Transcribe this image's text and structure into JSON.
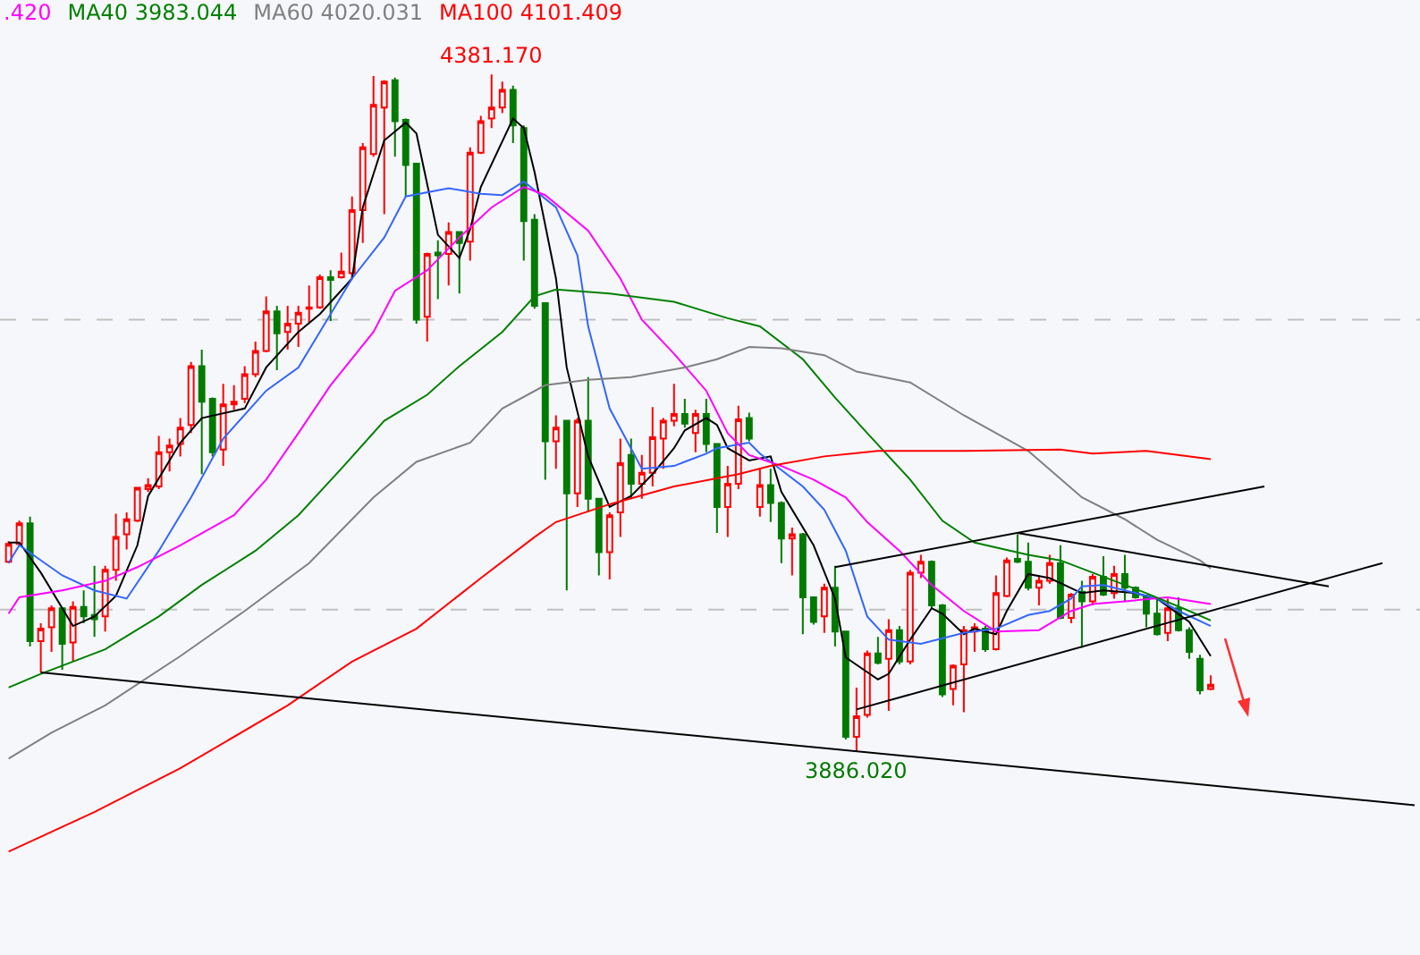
{
  "chart_data": {
    "type": "candlestick",
    "legend": "top left",
    "categories": [
      null,
      null,
      null,
      null,
      null,
      null,
      null,
      null,
      null,
      null,
      null,
      null,
      null,
      null,
      null,
      null,
      null,
      null,
      null,
      null,
      null,
      null,
      null,
      null,
      null,
      null,
      null,
      null,
      null,
      null,
      null,
      null,
      null,
      null,
      null,
      null,
      null,
      null,
      null,
      null,
      null,
      null,
      null,
      null,
      null,
      null,
      null,
      null,
      null,
      null,
      null,
      null,
      null,
      null,
      null,
      null,
      null,
      null,
      null,
      null,
      null,
      null,
      null,
      null,
      null,
      null,
      null,
      null,
      null,
      null,
      null,
      null,
      null,
      null,
      null,
      null,
      null,
      null,
      null,
      null,
      null,
      null,
      null,
      null,
      null,
      null,
      null,
      null,
      null,
      null,
      null,
      null,
      null,
      null,
      null,
      null,
      null,
      null,
      null,
      null,
      null,
      null,
      null,
      null,
      null,
      null,
      null,
      null,
      null,
      null,
      null,
      null,
      null,
      null,
      null,
      null,
      null,
      null,
      null,
      null,
      null,
      null,
      null,
      null,
      null,
      null,
      null,
      null,
      null,
      null,
      null,
      null
    ],
    "ohlc": [
      [
        4025,
        4040,
        4024,
        4038
      ],
      [
        4038,
        4055,
        4037,
        4053
      ],
      [
        4053,
        4058,
        3963,
        3967
      ],
      [
        3967,
        3980,
        3944,
        3976
      ],
      [
        3977,
        3993,
        3959,
        3991
      ],
      [
        3991,
        3991,
        3946,
        3965
      ],
      [
        3966,
        3996,
        3952,
        3992
      ],
      [
        3992,
        4004,
        3980,
        3985
      ],
      [
        3986,
        4022,
        3970,
        3983
      ],
      [
        3985,
        4022,
        3974,
        4019
      ],
      [
        4019,
        4060,
        4011,
        4043
      ],
      [
        4045,
        4061,
        4034,
        4056
      ],
      [
        4055,
        4079,
        4054,
        4079
      ],
      [
        4078,
        4086,
        4076,
        4081
      ],
      [
        4080,
        4117,
        4078,
        4105
      ],
      [
        4105,
        4115,
        4091,
        4110
      ],
      [
        4111,
        4130,
        4102,
        4123
      ],
      [
        4125,
        4171,
        4119,
        4168
      ],
      [
        4168,
        4180,
        4089,
        4142
      ],
      [
        4144,
        4145,
        4102,
        4105
      ],
      [
        4107,
        4155,
        4095,
        4140
      ],
      [
        4140,
        4154,
        4136,
        4142
      ],
      [
        4144,
        4168,
        4141,
        4162
      ],
      [
        4162,
        4186,
        4160,
        4179
      ],
      [
        4179,
        4219,
        4178,
        4208
      ],
      [
        4208,
        4212,
        4165,
        4192
      ],
      [
        4193,
        4212,
        4180,
        4199
      ],
      [
        4199,
        4212,
        4182,
        4207
      ],
      [
        4210,
        4227,
        4199,
        4211
      ],
      [
        4211,
        4235,
        4210,
        4233
      ],
      [
        4233,
        4238,
        4201,
        4231
      ],
      [
        4233,
        4251,
        4232,
        4237
      ],
      [
        4236,
        4292,
        4232,
        4282
      ],
      [
        4282,
        4331,
        4258,
        4328
      ],
      [
        4323,
        4380,
        4321,
        4359
      ],
      [
        4357,
        4377,
        4279,
        4376
      ],
      [
        4377,
        4379,
        4321,
        4347
      ],
      [
        4348,
        4349,
        4292,
        4315
      ],
      [
        4316,
        4316,
        4199,
        4202
      ],
      [
        4204,
        4251,
        4186,
        4250
      ],
      [
        4251,
        4260,
        4217,
        4249
      ],
      [
        4250,
        4273,
        4227,
        4266
      ],
      [
        4266,
        4266,
        4221,
        4258
      ],
      [
        4259,
        4328,
        4245,
        4324
      ],
      [
        4324,
        4351,
        4323,
        4347
      ],
      [
        4349,
        4381.17,
        4342,
        4357
      ],
      [
        4357,
        4376,
        4353,
        4370
      ],
      [
        4370,
        4373,
        4331,
        4344
      ],
      [
        4342,
        4344,
        4245,
        4274
      ],
      [
        4275,
        4279,
        4210,
        4212
      ],
      [
        4214,
        4214,
        4085,
        4113
      ],
      [
        4113,
        4132,
        4093,
        4123
      ],
      [
        4128,
        4128,
        4004,
        4075
      ],
      [
        4075,
        4130,
        4065,
        4128
      ],
      [
        4128,
        4160,
        4061,
        4071
      ],
      [
        4071,
        4071,
        4015,
        4032
      ],
      [
        4032,
        4061,
        4012,
        4059
      ],
      [
        4061,
        4115,
        4043,
        4097
      ],
      [
        4103,
        4115,
        4071,
        4082
      ],
      [
        4082,
        4103,
        4071,
        4090
      ],
      [
        4090,
        4138,
        4080,
        4116
      ],
      [
        4115,
        4130,
        4093,
        4128
      ],
      [
        4128,
        4155,
        4124,
        4133
      ],
      [
        4133,
        4144,
        4123,
        4126
      ],
      [
        4119,
        4136,
        4105,
        4133
      ],
      [
        4133,
        4144,
        4105,
        4111
      ],
      [
        4111,
        4111,
        4046,
        4065
      ],
      [
        4065,
        4095,
        4043,
        4082
      ],
      [
        4082,
        4139,
        4078,
        4129
      ],
      [
        4130,
        4134,
        4113,
        4115
      ],
      [
        4065,
        4093,
        4058,
        4081
      ],
      [
        4081,
        4093,
        4054,
        4068
      ],
      [
        4068,
        4069,
        4024,
        4042
      ],
      [
        4042,
        4050,
        4015,
        4045
      ],
      [
        4045,
        4046,
        3972,
        3999
      ],
      [
        3999,
        3999,
        3979,
        3981
      ],
      [
        3985,
        4009,
        3973,
        4006
      ],
      [
        4006,
        4022,
        3963,
        3974
      ],
      [
        3974,
        3974,
        3895,
        3897
      ],
      [
        3897,
        3933,
        3886.02,
        3912
      ],
      [
        3913,
        3960,
        3911,
        3958
      ],
      [
        3958,
        3970,
        3950,
        3951
      ],
      [
        3954,
        3983,
        3916,
        3975
      ],
      [
        3975,
        3978,
        3950,
        3952
      ],
      [
        3952,
        4019,
        3950,
        4017
      ],
      [
        4017,
        4030,
        4013,
        4025
      ],
      [
        4025,
        4026,
        3991,
        3993
      ],
      [
        3993,
        3994,
        3926,
        3928
      ],
      [
        3932,
        3950,
        3920,
        3949
      ],
      [
        3950,
        3978,
        3915,
        3975
      ],
      [
        3974,
        3980,
        3959,
        3977
      ],
      [
        3976,
        3978,
        3959,
        3961
      ],
      [
        3961,
        4015,
        3960,
        4002
      ],
      [
        4000,
        4028,
        3999,
        4026
      ],
      [
        4027,
        4045,
        4024,
        4025
      ],
      [
        4025,
        4039,
        4004,
        4006
      ],
      [
        4006,
        4015,
        3993,
        4011
      ],
      [
        4011,
        4030,
        4009,
        4024
      ],
      [
        4024,
        4037,
        3983,
        3984
      ],
      [
        3984,
        4002,
        3980,
        4001
      ],
      [
        4003,
        4011,
        3962,
        3996
      ],
      [
        3996,
        4016,
        3993,
        4014
      ],
      [
        4014,
        4029,
        4000,
        4001
      ],
      [
        4002,
        4022,
        3998,
        4016
      ],
      [
        4016,
        4030,
        3996,
        4006
      ],
      [
        4006,
        4007,
        3998,
        3999
      ],
      [
        4000,
        4001,
        3977,
        3987
      ],
      [
        3987,
        3998,
        3971,
        3972
      ],
      [
        3973,
        3998,
        3967,
        3991
      ],
      [
        3991,
        3999,
        3974,
        3975
      ],
      [
        3975,
        3977,
        3954,
        3959
      ],
      [
        3954,
        3957,
        3928,
        3931
      ],
      [
        3932,
        3942,
        3931,
        3935
      ],
      null,
      null,
      null,
      null,
      null,
      null,
      null,
      null,
      null,
      null,
      null,
      null,
      null,
      null,
      null,
      null,
      null,
      null,
      null
    ],
    "series": [
      {
        "type": "line",
        "color": "#000000",
        "values": [
          4039,
          4039,
          null,
          4017,
          null,
          null,
          3978,
          null,
          3985,
          null,
          4000,
          null,
          4037,
          4073,
          null,
          null,
          4112,
          null,
          4130,
          null,
          null,
          null,
          4137,
          null,
          4167,
          null,
          null,
          4193,
          null,
          4206,
          null,
          null,
          4232,
          4284,
          null,
          4333,
          null,
          4346,
          4338,
          null,
          4264,
          null,
          4247,
          4268,
          4299,
          null,
          null,
          4349,
          4342,
          4310,
          null,
          4232,
          4167,
          null,
          4102,
          null,
          4065,
          null,
          4073,
          null,
          4089,
          null,
          4108,
          4121,
          null,
          4130,
          4125,
          4108,
          null,
          4099,
          null,
          4102,
          4076,
          null,
          null,
          4037,
          null,
          3998,
          3955,
          null,
          null,
          3939,
          3943,
          null,
          3968,
          null,
          3991,
          3987,
          null,
          3972,
          3976,
          null,
          3972,
          3989,
          null,
          4016,
          null,
          4013,
          null,
          null,
          4002,
          null,
          4004,
          null,
          null,
          4002,
          null,
          3998,
          null,
          null,
          3981,
          null,
          3956,
          null,
          null,
          null,
          null,
          null,
          null,
          null,
          null,
          null,
          null,
          null,
          null,
          null,
          null,
          null,
          null,
          null,
          null,
          null
        ]
      },
      {
        "type": "line",
        "color": "#3366ff",
        "values": [
          4024,
          4037,
          null,
          null,
          null,
          4015,
          null,
          null,
          4004,
          null,
          null,
          3998,
          null,
          null,
          4033,
          null,
          null,
          4072,
          null,
          null,
          4115,
          null,
          null,
          null,
          4150,
          null,
          null,
          4167,
          null,
          null,
          4206,
          null,
          4232,
          null,
          null,
          4262,
          null,
          4292,
          null,
          null,
          null,
          4298,
          null,
          null,
          4294,
          null,
          4293,
          null,
          4303,
          null,
          null,
          4284,
          null,
          4249,
          4197,
          null,
          4137,
          null,
          null,
          4093,
          null,
          null,
          4095,
          null,
          null,
          4104,
          4108,
          null,
          null,
          4112,
          4104,
          null,
          null,
          null,
          4080,
          null,
          4063,
          null,
          4033,
          null,
          3985,
          null,
          3968,
          null,
          null,
          3965,
          null,
          null,
          null,
          3973,
          null,
          null,
          3976,
          null,
          null,
          3986,
          null,
          3989,
          null,
          3998,
          4007,
          null,
          4008,
          null,
          null,
          4002,
          null,
          3998,
          null,
          3989,
          null,
          null,
          3978,
          null,
          null,
          null,
          null,
          null,
          null,
          null,
          null,
          null,
          null,
          null,
          null,
          null,
          null,
          null,
          null,
          null,
          null,
          null
        ]
      },
      {
        "type": "line",
        "name": ".420",
        "color": "#ff00ff",
        "values": [
          3987,
          3999,
          null,
          null,
          null,
          4004,
          null,
          null,
          null,
          4011,
          null,
          null,
          4021,
          null,
          null,
          null,
          4037,
          null,
          null,
          null,
          null,
          4059,
          null,
          null,
          4085,
          null,
          null,
          4119,
          null,
          null,
          4154,
          null,
          null,
          null,
          4193,
          null,
          4223,
          null,
          null,
          4238,
          null,
          null,
          4262,
          null,
          null,
          4284,
          null,
          null,
          4299,
          null,
          4293,
          null,
          null,
          null,
          4267,
          null,
          null,
          4232,
          null,
          4202,
          null,
          null,
          4177,
          null,
          null,
          4150,
          null,
          4119,
          null,
          4103,
          null,
          null,
          4095,
          null,
          null,
          4085,
          null,
          null,
          4072,
          null,
          4054,
          null,
          null,
          4033,
          null,
          null,
          4008,
          null,
          null,
          3989,
          null,
          null,
          3974,
          null,
          null,
          null,
          3975,
          null,
          null,
          3989,
          null,
          3994,
          null,
          null,
          3996,
          null,
          null,
          null,
          3999,
          null,
          null,
          null,
          3994,
          null,
          null,
          null,
          null,
          null,
          null,
          null,
          null,
          null,
          null,
          null,
          null,
          null,
          null,
          null,
          null,
          null,
          null,
          null
        ]
      },
      {
        "type": "line",
        "name": "MA40 3983.044",
        "color": "#008000",
        "values": [
          3933,
          null,
          null,
          3943,
          null,
          null,
          null,
          null,
          null,
          3961,
          null,
          null,
          null,
          null,
          3985,
          null,
          null,
          null,
          4008,
          null,
          null,
          null,
          null,
          4033,
          null,
          null,
          null,
          4059,
          null,
          null,
          null,
          4093,
          null,
          null,
          null,
          4128,
          null,
          null,
          null,
          4147,
          null,
          null,
          4168,
          null,
          null,
          null,
          4193,
          null,
          null,
          4219,
          null,
          4224,
          null,
          null,
          null,
          null,
          4221,
          null,
          null,
          null,
          null,
          null,
          4215,
          null,
          null,
          null,
          null,
          4203,
          null,
          null,
          4197,
          null,
          null,
          null,
          4173,
          null,
          null,
          4145,
          null,
          null,
          4119,
          null,
          null,
          null,
          4085,
          null,
          null,
          4055,
          null,
          null,
          4039,
          null,
          null,
          null,
          null,
          4030,
          null,
          null,
          4026,
          null,
          null,
          4017,
          null,
          null,
          null,
          null,
          4002,
          null,
          null,
          null,
          3989,
          null,
          3982,
          null,
          null,
          null,
          null,
          null,
          null,
          null,
          null,
          null,
          null,
          null,
          null,
          null,
          null,
          null,
          null,
          null,
          null,
          null
        ]
      },
      {
        "type": "line",
        "name": "MA60 4020.031",
        "color": "#808080",
        "values": [
          3881,
          null,
          null,
          null,
          3900,
          null,
          null,
          null,
          null,
          3920,
          null,
          null,
          null,
          null,
          null,
          null,
          3956,
          null,
          null,
          null,
          null,
          null,
          3989,
          null,
          null,
          null,
          null,
          null,
          4024,
          null,
          null,
          null,
          null,
          null,
          4072,
          null,
          null,
          null,
          4098,
          null,
          null,
          null,
          null,
          4112,
          null,
          null,
          4137,
          null,
          null,
          null,
          4154,
          null,
          null,
          null,
          4158,
          null,
          null,
          null,
          4160,
          null,
          null,
          null,
          null,
          4167,
          null,
          null,
          4173,
          null,
          null,
          4182,
          null,
          null,
          4181,
          null,
          null,
          null,
          4176,
          null,
          null,
          4164,
          null,
          null,
          null,
          null,
          4156,
          null,
          null,
          null,
          null,
          4132,
          null,
          null,
          null,
          null,
          null,
          4106,
          null,
          null,
          null,
          null,
          4072,
          null,
          null,
          null,
          4056,
          null,
          null,
          4041,
          null,
          null,
          null,
          4026,
          4020,
          null,
          null,
          null,
          null,
          null,
          null,
          null,
          null,
          null,
          null,
          null,
          null,
          null,
          null,
          null,
          null,
          null,
          null,
          null
        ]
      },
      {
        "type": "line",
        "name": "MA100 4101.409",
        "color": "#ff0000",
        "values": [
          3813,
          null,
          null,
          null,
          null,
          null,
          null,
          null,
          3842,
          null,
          null,
          null,
          null,
          null,
          null,
          null,
          3874,
          null,
          null,
          null,
          null,
          null,
          null,
          null,
          null,
          null,
          3920,
          null,
          null,
          null,
          null,
          null,
          3952,
          null,
          null,
          null,
          null,
          null,
          3976,
          null,
          null,
          null,
          null,
          null,
          4013,
          null,
          null,
          null,
          null,
          4043,
          null,
          4054,
          null,
          null,
          null,
          null,
          4067,
          null,
          null,
          null,
          null,
          null,
          4080,
          null,
          null,
          null,
          null,
          null,
          4089,
          null,
          null,
          4095,
          null,
          null,
          null,
          null,
          4102,
          null,
          null,
          null,
          null,
          4106,
          null,
          null,
          null,
          null,
          null,
          null,
          null,
          4106,
          null,
          null,
          null,
          null,
          null,
          null,
          null,
          null,
          4107,
          null,
          null,
          4104,
          null,
          null,
          null,
          null,
          4106,
          null,
          null,
          null,
          null,
          null,
          4100,
          null,
          null,
          null,
          null,
          null,
          null,
          null,
          null,
          null,
          null,
          null,
          null,
          null,
          null,
          null,
          null,
          null,
          null,
          null
        ]
      },
      {
        "type": "line",
        "color": "#000000",
        "values": [
          null,
          null,
          null,
          3944,
          null,
          null,
          null,
          null,
          null,
          null,
          null,
          null,
          null,
          null,
          null,
          null,
          null,
          null,
          null,
          null,
          null,
          null,
          null,
          null,
          null,
          null,
          null,
          null,
          null,
          null,
          null,
          null,
          null,
          null,
          null,
          null,
          null,
          null,
          null,
          null,
          null,
          null,
          null,
          null,
          null,
          null,
          null,
          null,
          null,
          null,
          null,
          null,
          null,
          null,
          null,
          null,
          null,
          null,
          null,
          null,
          null,
          null,
          null,
          null,
          null,
          null,
          null,
          null,
          null,
          null,
          null,
          null,
          null,
          null,
          null,
          null,
          null,
          null,
          null,
          null,
          null,
          null,
          null,
          null,
          null,
          null,
          null,
          null,
          null,
          null,
          null,
          null,
          null,
          null,
          null,
          null,
          null,
          null,
          null,
          null,
          null,
          null,
          null,
          null,
          null,
          null,
          null,
          null,
          null,
          null,
          null,
          null,
          null,
          null,
          null,
          null,
          null,
          null,
          null,
          null,
          null,
          null,
          null,
          null,
          null,
          null,
          null,
          null,
          null,
          null,
          null,
          3847
        ]
      },
      {
        "type": "line",
        "color": "#000000",
        "values": [
          null,
          null,
          null,
          null,
          null,
          null,
          null,
          null,
          null,
          null,
          null,
          null,
          null,
          null,
          null,
          null,
          null,
          null,
          null,
          null,
          null,
          null,
          null,
          null,
          null,
          null,
          null,
          null,
          null,
          null,
          null,
          null,
          null,
          null,
          null,
          null,
          null,
          null,
          null,
          null,
          null,
          null,
          null,
          null,
          null,
          null,
          null,
          null,
          null,
          null,
          null,
          null,
          null,
          null,
          null,
          null,
          null,
          null,
          null,
          null,
          null,
          null,
          null,
          null,
          null,
          null,
          null,
          null,
          null,
          null,
          null,
          null,
          null,
          null,
          null,
          null,
          null,
          null,
          null,
          3917,
          null,
          null,
          null,
          null,
          null,
          null,
          null,
          null,
          null,
          null,
          null,
          null,
          null,
          null,
          null,
          null,
          null,
          null,
          null,
          null,
          null,
          null,
          null,
          null,
          null,
          null,
          null,
          null,
          null,
          null,
          null,
          null,
          null,
          null,
          null,
          null,
          null,
          null,
          null,
          null,
          null,
          null,
          null,
          null,
          null,
          null,
          null,
          null,
          4024,
          null,
          null,
          null
        ]
      },
      {
        "type": "line",
        "color": "#000000",
        "values": [
          null,
          null,
          null,
          null,
          null,
          null,
          null,
          null,
          null,
          null,
          null,
          null,
          null,
          null,
          null,
          null,
          null,
          null,
          null,
          null,
          null,
          null,
          null,
          null,
          null,
          null,
          null,
          null,
          null,
          null,
          null,
          null,
          null,
          null,
          null,
          null,
          null,
          null,
          null,
          null,
          null,
          null,
          null,
          null,
          null,
          null,
          null,
          null,
          null,
          null,
          null,
          null,
          null,
          null,
          null,
          null,
          null,
          null,
          null,
          null,
          null,
          null,
          null,
          null,
          null,
          null,
          null,
          null,
          null,
          null,
          null,
          null,
          null,
          null,
          null,
          null,
          null,
          4021,
          null,
          null,
          null,
          null,
          null,
          null,
          null,
          null,
          null,
          null,
          null,
          null,
          null,
          null,
          null,
          null,
          null,
          null,
          null,
          null,
          null,
          null,
          null,
          null,
          null,
          null,
          null,
          null,
          null,
          null,
          null,
          null,
          null,
          null,
          null,
          null,
          null,
          null,
          null,
          4080,
          null,
          null,
          null,
          null,
          null,
          null,
          null,
          null,
          null,
          null,
          null,
          null,
          null,
          null
        ]
      },
      {
        "type": "line",
        "color": "#000000",
        "values": [
          null,
          null,
          null,
          null,
          null,
          null,
          null,
          null,
          null,
          null,
          null,
          null,
          null,
          null,
          null,
          null,
          null,
          null,
          null,
          null,
          null,
          null,
          null,
          null,
          null,
          null,
          null,
          null,
          null,
          null,
          null,
          null,
          null,
          null,
          null,
          null,
          null,
          null,
          null,
          null,
          null,
          null,
          null,
          null,
          null,
          null,
          null,
          null,
          null,
          null,
          null,
          null,
          null,
          null,
          null,
          null,
          null,
          null,
          null,
          null,
          null,
          null,
          null,
          null,
          null,
          null,
          null,
          null,
          null,
          null,
          null,
          null,
          null,
          null,
          null,
          null,
          null,
          null,
          null,
          null,
          null,
          null,
          null,
          null,
          null,
          null,
          null,
          null,
          null,
          null,
          null,
          null,
          null,
          null,
          4046,
          null,
          null,
          null,
          null,
          null,
          null,
          null,
          null,
          null,
          null,
          null,
          null,
          null,
          null,
          null,
          null,
          null,
          null,
          null,
          null,
          null,
          null,
          null,
          null,
          null,
          null,
          null,
          null,
          4007,
          null,
          null,
          null,
          null,
          null,
          null,
          null,
          null
        ]
      }
    ],
    "annotations": [
      {
        "text": "4381.170",
        "y": 4381.17
      },
      {
        "text": "3886.020",
        "y": 3886.02
      }
    ],
    "ref_lines": [
      {
        "axis": "y",
        "value": 4202,
        "color": "#c0c0c0",
        "line_style": "dashed"
      },
      {
        "axis": "y",
        "value": 3990,
        "color": "#c0c0c0",
        "line_style": "dashed"
      }
    ]
  }
}
